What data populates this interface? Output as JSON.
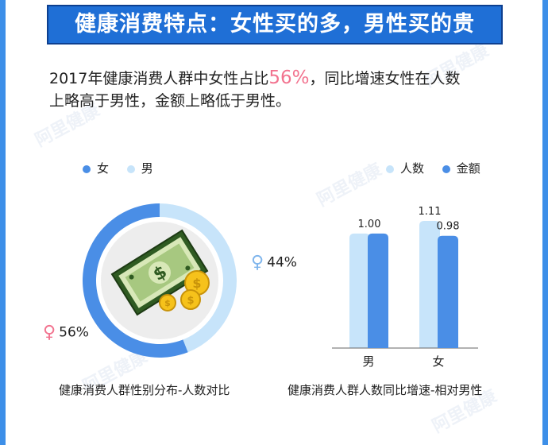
{
  "title": "健康消费特点：女性买的多，男性买的贵",
  "intro": {
    "line1_pre": "2017年健康消费人群中女性占比",
    "line1_highlight": "56%",
    "line1_post": "，同比增速女性在人数",
    "line2": "上略高于男性，金额上略低于男性。"
  },
  "watermark": "阿里健康",
  "colors": {
    "primary": "#4a8ee6",
    "light": "#c7e4fa",
    "pink": "#f2738f",
    "banner": "#1f6fd6"
  },
  "chart_data": [
    {
      "type": "pie",
      "title": "",
      "caption": "健康消费人群性别分布-人数对比",
      "legend": [
        "女",
        "男"
      ],
      "slices": [
        {
          "label": "女",
          "value": 56,
          "display": "56%",
          "symbol": "♀"
        },
        {
          "label": "男",
          "value": 44,
          "display": "44%",
          "symbol": "♀"
        }
      ],
      "center_icon": "money-icon"
    },
    {
      "type": "bar",
      "title": "",
      "caption": "健康消费人群人数同比增速-相对男性",
      "categories": [
        "男",
        "女"
      ],
      "series": [
        {
          "name": "人数",
          "values": [
            1.0,
            1.11
          ],
          "labels": [
            "1.00",
            "1.11"
          ]
        },
        {
          "name": "金额",
          "values": [
            1.0,
            0.98
          ],
          "labels": [
            "",
            "0.98"
          ]
        }
      ],
      "ylim": [
        0,
        1.2
      ],
      "grid": false,
      "legend_position": "top-right"
    }
  ]
}
